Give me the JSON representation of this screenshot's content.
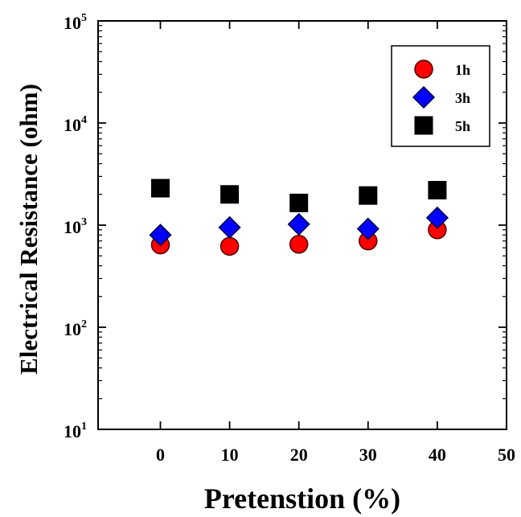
{
  "chart_data": {
    "type": "scatter",
    "title": "",
    "xlabel": "Pretenstion (%)",
    "ylabel": "Electrical Resistance (ohm)",
    "x": [
      0,
      10,
      20,
      30,
      40
    ],
    "xlim": [
      -9,
      50
    ],
    "xticks": [
      0,
      10,
      20,
      30,
      40,
      50
    ],
    "ylim": [
      10,
      100000
    ],
    "yscale": "log",
    "yticks": [
      {
        "value": 10,
        "base": "10",
        "exp": "1"
      },
      {
        "value": 100,
        "base": "10",
        "exp": "2"
      },
      {
        "value": 1000,
        "base": "10",
        "exp": "3"
      },
      {
        "value": 10000,
        "base": "10",
        "exp": "4"
      },
      {
        "value": 100000,
        "base": "10",
        "exp": "5"
      }
    ],
    "grid": false,
    "legend_position": "top-right",
    "series": [
      {
        "name": "1h",
        "marker": "circle",
        "color": "#ff0000",
        "values": [
          640,
          620,
          650,
          700,
          900
        ]
      },
      {
        "name": "3h",
        "marker": "diamond",
        "color": "#0000ff",
        "values": [
          800,
          950,
          1020,
          920,
          1180
        ]
      },
      {
        "name": "5h",
        "marker": "square",
        "color": "#000000",
        "values": [
          2300,
          2000,
          1650,
          1950,
          2200
        ]
      }
    ]
  }
}
